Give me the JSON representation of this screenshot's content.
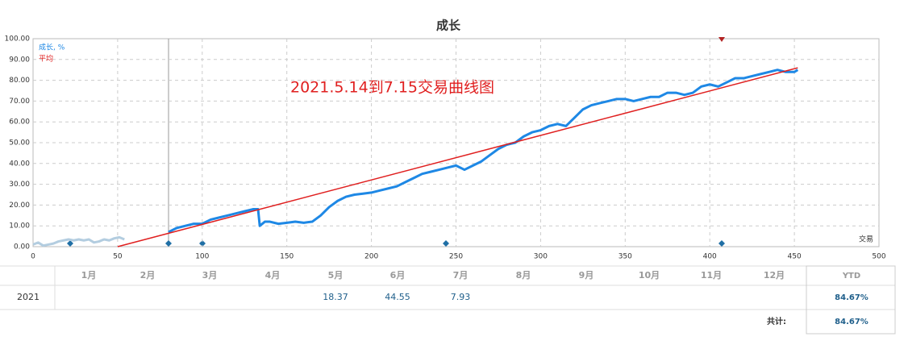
{
  "chart_data": {
    "type": "line",
    "title": "成长",
    "annotation": "2021.5.14到7.15交易曲线图",
    "xlabel": "交易",
    "xlim": [
      0,
      500
    ],
    "xticks": [
      0,
      50,
      100,
      150,
      200,
      250,
      300,
      350,
      400,
      450,
      500
    ],
    "ylim": [
      0,
      100
    ],
    "yticks": [
      {
        "value": 0,
        "label": "0.00"
      },
      {
        "value": 10,
        "label": "10.00"
      },
      {
        "value": 20,
        "label": "20.00"
      },
      {
        "value": 30,
        "label": "30.00"
      },
      {
        "value": 40,
        "label": "40.00"
      },
      {
        "value": 50,
        "label": "50.00"
      },
      {
        "value": 60,
        "label": "60.00"
      },
      {
        "value": 70,
        "label": "70.00"
      },
      {
        "value": 80,
        "label": "80.00"
      },
      {
        "value": 90,
        "label": "90.00"
      },
      {
        "value": 100,
        "label": "100.00"
      }
    ],
    "grid": true,
    "series": [
      {
        "color": "#b3cde0",
        "x": [
          0,
          3,
          6,
          9,
          12,
          15,
          18,
          21,
          24,
          27,
          30,
          33,
          36,
          39,
          42,
          45,
          48,
          51,
          54
        ],
        "values": [
          1,
          2,
          0.5,
          1,
          1.5,
          2.5,
          3,
          3.5,
          3,
          3.5,
          3,
          3.5,
          2,
          2.5,
          3.5,
          3,
          4,
          4.5,
          3.5
        ]
      },
      {
        "name": "成长, %",
        "color": "#1e88e5",
        "x": [
          80,
          85,
          90,
          95,
          100,
          105,
          110,
          115,
          120,
          125,
          130,
          133,
          134,
          137,
          140,
          145,
          150,
          155,
          160,
          165,
          170,
          175,
          180,
          185,
          190,
          195,
          200,
          205,
          210,
          215,
          220,
          225,
          230,
          235,
          240,
          245,
          250,
          255,
          260,
          265,
          270,
          275,
          280,
          285,
          290,
          295,
          300,
          305,
          310,
          315,
          320,
          325,
          330,
          335,
          340,
          345,
          350,
          355,
          360,
          365,
          370,
          375,
          380,
          385,
          390,
          395,
          400,
          405,
          410,
          415,
          420,
          425,
          430,
          435,
          440,
          445,
          450,
          452
        ],
        "values": [
          7,
          9,
          10,
          11,
          11,
          13,
          14,
          15,
          16,
          17,
          18,
          18,
          10,
          12,
          12,
          11,
          11.5,
          12,
          11.5,
          12,
          15,
          19,
          22,
          24,
          25,
          25.5,
          26,
          27,
          28,
          29,
          31,
          33,
          35,
          36,
          37,
          38,
          39,
          37,
          39,
          41,
          44,
          47,
          49,
          50,
          53,
          55,
          56,
          58,
          59,
          58,
          62,
          66,
          68,
          69,
          70,
          71,
          71,
          70,
          71,
          72,
          72,
          74,
          74,
          73,
          74,
          77,
          78,
          77,
          79,
          81,
          81,
          82,
          83,
          84,
          85,
          84,
          84,
          85
        ]
      },
      {
        "name": "平均",
        "color": "#e02020",
        "x": [
          50,
          452
        ],
        "values": [
          0,
          86
        ]
      }
    ]
  },
  "table": {
    "months": [
      "1月",
      "2月",
      "3月",
      "4月",
      "5月",
      "6月",
      "7月",
      "8月",
      "9月",
      "10月",
      "11月",
      "12月"
    ],
    "ytd_header": "YTD",
    "rows": [
      {
        "year": "2021",
        "values": [
          null,
          null,
          null,
          null,
          18.37,
          44.55,
          7.93,
          null,
          null,
          null,
          null,
          null
        ],
        "ytd": "84.67%"
      }
    ],
    "total_label": "共计:",
    "total": "84.67%"
  }
}
